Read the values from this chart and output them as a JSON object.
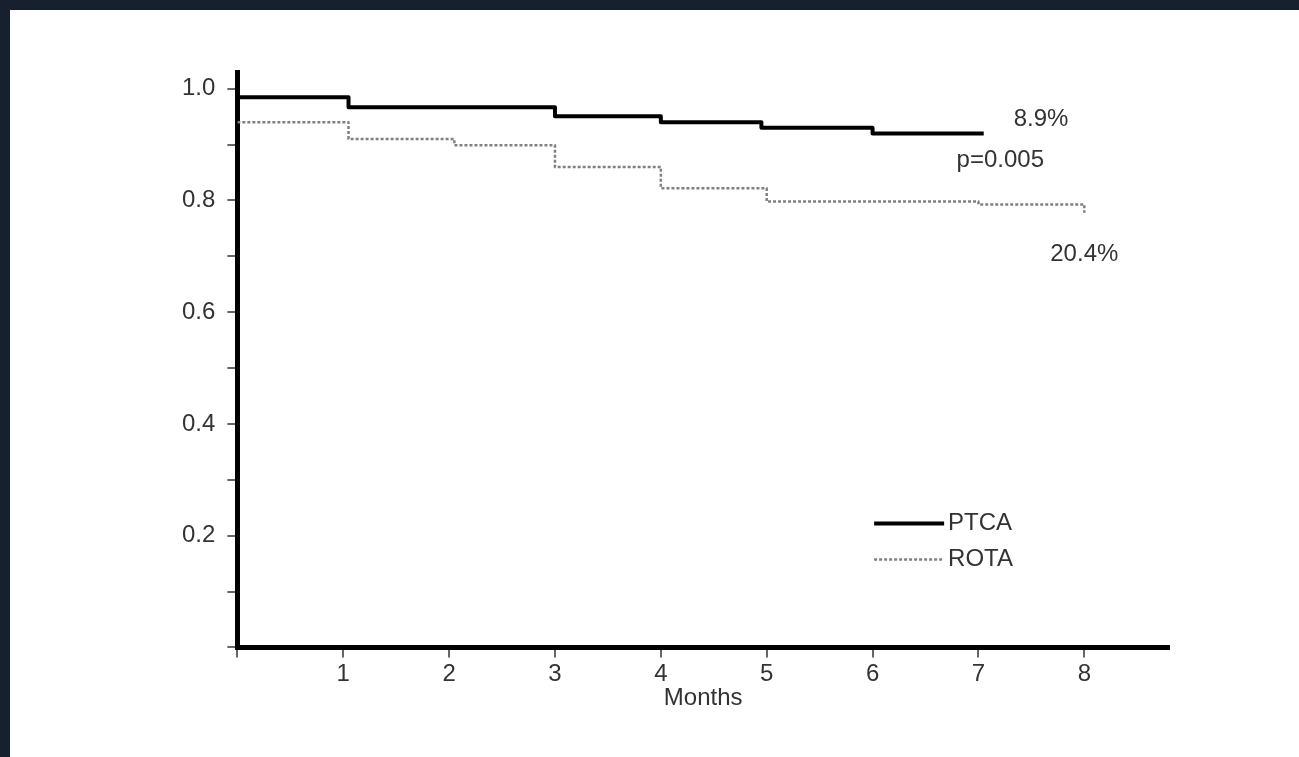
{
  "chart_data": {
    "type": "step",
    "xlabel": "Months",
    "xlim": [
      0,
      8.8
    ],
    "xticks": [
      {
        "value": 0,
        "label": null
      },
      1,
      2,
      3,
      4,
      5,
      6,
      7,
      8
    ],
    "ylim": [
      0,
      1.03
    ],
    "yticks": [
      {
        "value": 0,
        "label": null
      },
      {
        "value": 0.1,
        "label": null
      },
      0.2,
      {
        "value": 0.3,
        "label": null
      },
      0.4,
      {
        "value": 0.5,
        "label": null
      },
      0.6,
      {
        "value": 0.7,
        "label": null
      },
      0.8,
      {
        "value": 0.9,
        "label": null
      },
      {
        "value": 1,
        "label": "1.0"
      }
    ],
    "grid": false,
    "legend": "bottom right",
    "marker": "none",
    "series": [
      {
        "name": "PTCA",
        "color": "#000000",
        "line_style": "solid",
        "x": [
          0,
          1.05,
          3.0,
          4.0,
          4.95,
          6.0,
          7.05
        ],
        "values": [
          0.985,
          0.967,
          0.951,
          0.94,
          0.93,
          0.92,
          0.92
        ]
      },
      {
        "name": "ROTA",
        "color": "#808080",
        "line_style": "dotted",
        "x": [
          0,
          1.05,
          2.05,
          3.0,
          4.0,
          5.0,
          7.0,
          8.0,
          8.0
        ],
        "values": [
          0.94,
          0.91,
          0.899,
          0.86,
          0.822,
          0.798,
          0.793,
          0.793,
          0.778
        ]
      }
    ],
    "annotations": [
      {
        "text": "8.9%",
        "x": 7.05,
        "y": 0.92
      },
      "p=0.005",
      {
        "text": "20.4%",
        "x": 8.0,
        "y": 0.778
      }
    ]
  }
}
